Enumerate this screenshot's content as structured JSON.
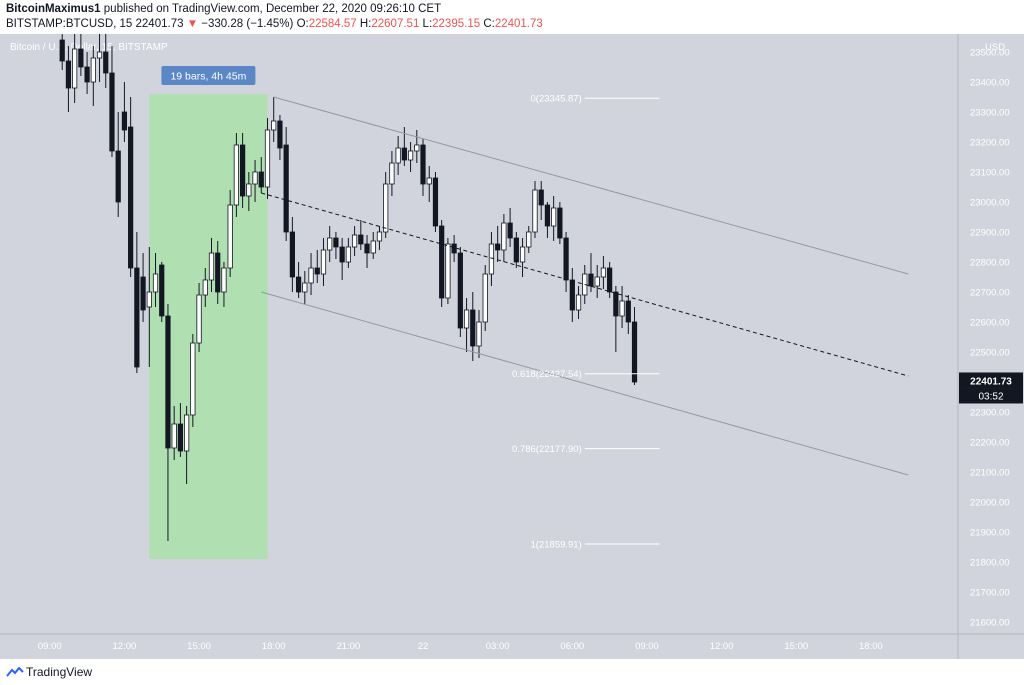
{
  "header": {
    "author": "BitcoinMaximus1",
    "published_text": "published on TradingView.com, December 22, 2020 09:26:10 CET",
    "symbol": "BITSTAMP:BTCUSD, 15",
    "last": "22401.73",
    "change_arrow": "▼",
    "change": "−330.28 (−1.45%)",
    "o_label": "O:",
    "o_value": "22584.57",
    "h_label": "H:",
    "h_value": "22607.51",
    "l_label": "L:",
    "l_value": "22395.15",
    "c_label": "C:",
    "c_value": "22401.73"
  },
  "chart_data": {
    "type": "candlestick",
    "title": "Bitcoin / U.S. Dollar, 15, BITSTAMP",
    "currency": "USD",
    "ylim": [
      21560,
      23560
    ],
    "y_ticks": [
      21600,
      21700,
      21800,
      21900,
      22000,
      22100,
      22200,
      22300,
      22400,
      22500,
      22600,
      22700,
      22800,
      22900,
      23000,
      23100,
      23200,
      23300,
      23400,
      23500
    ],
    "x_ticks": [
      "09:00",
      "12:00",
      "15:00",
      "18:00",
      "21:00",
      "22",
      "03:00",
      "06:00",
      "09:00",
      "12:00",
      "15:00",
      "18:00"
    ],
    "x_tick_time": [
      9,
      12,
      15,
      18,
      21,
      24,
      27,
      30,
      33,
      36,
      39,
      42
    ],
    "candles": [
      {
        "t": 9.5,
        "o": 23540,
        "h": 23600,
        "l": 23440,
        "c": 23470
      },
      {
        "t": 9.75,
        "o": 23470,
        "h": 23520,
        "l": 23300,
        "c": 23380
      },
      {
        "t": 10.0,
        "o": 23380,
        "h": 23560,
        "l": 23330,
        "c": 23510
      },
      {
        "t": 10.25,
        "o": 23510,
        "h": 23560,
        "l": 23420,
        "c": 23450
      },
      {
        "t": 10.5,
        "o": 23450,
        "h": 23500,
        "l": 23360,
        "c": 23400
      },
      {
        "t": 10.75,
        "o": 23400,
        "h": 23520,
        "l": 23320,
        "c": 23480
      },
      {
        "t": 11.0,
        "o": 23480,
        "h": 23560,
        "l": 23400,
        "c": 23500
      },
      {
        "t": 11.25,
        "o": 23500,
        "h": 23560,
        "l": 23380,
        "c": 23430
      },
      {
        "t": 11.5,
        "o": 23430,
        "h": 23520,
        "l": 23150,
        "c": 23170
      },
      {
        "t": 11.75,
        "o": 23170,
        "h": 23300,
        "l": 22950,
        "c": 23000
      },
      {
        "t": 12.0,
        "o": 23300,
        "h": 23400,
        "l": 23200,
        "c": 23240
      },
      {
        "t": 12.25,
        "o": 23250,
        "h": 23350,
        "l": 22750,
        "c": 22780
      },
      {
        "t": 12.5,
        "o": 22780,
        "h": 22900,
        "l": 22430,
        "c": 22450
      },
      {
        "t": 12.75,
        "o": 22750,
        "h": 22830,
        "l": 22600,
        "c": 22640
      },
      {
        "t": 13.0,
        "o": 22650,
        "h": 22850,
        "l": 22450,
        "c": 22700
      },
      {
        "t": 13.25,
        "o": 22700,
        "h": 22830,
        "l": 22650,
        "c": 22760
      },
      {
        "t": 13.5,
        "o": 22790,
        "h": 22800,
        "l": 22600,
        "c": 22620
      },
      {
        "t": 13.75,
        "o": 22620,
        "h": 22660,
        "l": 21870,
        "c": 22180
      },
      {
        "t": 14.0,
        "o": 22180,
        "h": 22320,
        "l": 22140,
        "c": 22260
      },
      {
        "t": 14.25,
        "o": 22260,
        "h": 22330,
        "l": 22150,
        "c": 22170
      },
      {
        "t": 14.5,
        "o": 22170,
        "h": 22320,
        "l": 22060,
        "c": 22290
      },
      {
        "t": 14.75,
        "o": 22290,
        "h": 22560,
        "l": 22250,
        "c": 22530
      },
      {
        "t": 15.0,
        "o": 22530,
        "h": 22730,
        "l": 22500,
        "c": 22690
      },
      {
        "t": 15.25,
        "o": 22690,
        "h": 22780,
        "l": 22650,
        "c": 22740
      },
      {
        "t": 15.5,
        "o": 22740,
        "h": 22880,
        "l": 22700,
        "c": 22830
      },
      {
        "t": 15.75,
        "o": 22830,
        "h": 22870,
        "l": 22660,
        "c": 22700
      },
      {
        "t": 16.0,
        "o": 22700,
        "h": 22800,
        "l": 22650,
        "c": 22780
      },
      {
        "t": 16.25,
        "o": 22780,
        "h": 23040,
        "l": 22750,
        "c": 22990
      },
      {
        "t": 16.5,
        "o": 22990,
        "h": 23230,
        "l": 22950,
        "c": 23190
      },
      {
        "t": 16.75,
        "o": 23190,
        "h": 23230,
        "l": 22980,
        "c": 23020
      },
      {
        "t": 17.0,
        "o": 23020,
        "h": 23100,
        "l": 22970,
        "c": 23060
      },
      {
        "t": 17.25,
        "o": 23060,
        "h": 23140,
        "l": 23000,
        "c": 23100
      },
      {
        "t": 17.5,
        "o": 23100,
        "h": 23150,
        "l": 23030,
        "c": 23050
      },
      {
        "t": 17.75,
        "o": 23050,
        "h": 23280,
        "l": 23010,
        "c": 23240
      },
      {
        "t": 18.0,
        "o": 23240,
        "h": 23350,
        "l": 23200,
        "c": 23270
      },
      {
        "t": 18.25,
        "o": 23270,
        "h": 23290,
        "l": 23140,
        "c": 23180
      },
      {
        "t": 18.5,
        "o": 23190,
        "h": 23250,
        "l": 22870,
        "c": 22900
      },
      {
        "t": 18.75,
        "o": 22900,
        "h": 22950,
        "l": 22700,
        "c": 22750
      },
      {
        "t": 19.0,
        "o": 22750,
        "h": 22800,
        "l": 22680,
        "c": 22700
      },
      {
        "t": 19.25,
        "o": 22700,
        "h": 22770,
        "l": 22660,
        "c": 22730
      },
      {
        "t": 19.5,
        "o": 22730,
        "h": 22830,
        "l": 22690,
        "c": 22780
      },
      {
        "t": 19.75,
        "o": 22780,
        "h": 22840,
        "l": 22730,
        "c": 22760
      },
      {
        "t": 20.0,
        "o": 22760,
        "h": 22880,
        "l": 22720,
        "c": 22840
      },
      {
        "t": 20.25,
        "o": 22840,
        "h": 22920,
        "l": 22800,
        "c": 22880
      },
      {
        "t": 20.5,
        "o": 22880,
        "h": 22900,
        "l": 22810,
        "c": 22850
      },
      {
        "t": 20.75,
        "o": 22850,
        "h": 22880,
        "l": 22740,
        "c": 22800
      },
      {
        "t": 21.0,
        "o": 22800,
        "h": 22880,
        "l": 22780,
        "c": 22850
      },
      {
        "t": 21.25,
        "o": 22850,
        "h": 22920,
        "l": 22820,
        "c": 22890
      },
      {
        "t": 21.5,
        "o": 22890,
        "h": 22940,
        "l": 22840,
        "c": 22860
      },
      {
        "t": 21.75,
        "o": 22860,
        "h": 22890,
        "l": 22780,
        "c": 22830
      },
      {
        "t": 22.0,
        "o": 22830,
        "h": 22900,
        "l": 22810,
        "c": 22870
      },
      {
        "t": 22.25,
        "o": 22870,
        "h": 22920,
        "l": 22840,
        "c": 22900
      },
      {
        "t": 22.5,
        "o": 22900,
        "h": 23100,
        "l": 22880,
        "c": 23060
      },
      {
        "t": 22.75,
        "o": 23060,
        "h": 23170,
        "l": 23020,
        "c": 23130
      },
      {
        "t": 23.0,
        "o": 23130,
        "h": 23220,
        "l": 23090,
        "c": 23180
      },
      {
        "t": 23.25,
        "o": 23180,
        "h": 23250,
        "l": 23120,
        "c": 23140
      },
      {
        "t": 23.5,
        "o": 23140,
        "h": 23200,
        "l": 23100,
        "c": 23170
      },
      {
        "t": 23.75,
        "o": 23170,
        "h": 23240,
        "l": 23130,
        "c": 23190
      },
      {
        "t": 24.0,
        "o": 23190,
        "h": 23210,
        "l": 23020,
        "c": 23060
      },
      {
        "t": 24.25,
        "o": 23060,
        "h": 23120,
        "l": 23000,
        "c": 23080
      },
      {
        "t": 24.5,
        "o": 23080,
        "h": 23100,
        "l": 22900,
        "c": 22920
      },
      {
        "t": 24.75,
        "o": 22920,
        "h": 22940,
        "l": 22650,
        "c": 22680
      },
      {
        "t": 25.0,
        "o": 22680,
        "h": 22880,
        "l": 22660,
        "c": 22860
      },
      {
        "t": 25.25,
        "o": 22860,
        "h": 22890,
        "l": 22800,
        "c": 22830
      },
      {
        "t": 25.5,
        "o": 22830,
        "h": 22850,
        "l": 22550,
        "c": 22580
      },
      {
        "t": 25.75,
        "o": 22580,
        "h": 22680,
        "l": 22500,
        "c": 22640
      },
      {
        "t": 26.0,
        "o": 22640,
        "h": 22700,
        "l": 22470,
        "c": 22520
      },
      {
        "t": 26.25,
        "o": 22520,
        "h": 22640,
        "l": 22480,
        "c": 22600
      },
      {
        "t": 26.5,
        "o": 22600,
        "h": 22790,
        "l": 22570,
        "c": 22760
      },
      {
        "t": 26.75,
        "o": 22760,
        "h": 22900,
        "l": 22720,
        "c": 22860
      },
      {
        "t": 27.0,
        "o": 22860,
        "h": 22920,
        "l": 22800,
        "c": 22840
      },
      {
        "t": 27.25,
        "o": 22840,
        "h": 22960,
        "l": 22800,
        "c": 22930
      },
      {
        "t": 27.5,
        "o": 22930,
        "h": 22980,
        "l": 22850,
        "c": 22880
      },
      {
        "t": 27.75,
        "o": 22880,
        "h": 22900,
        "l": 22780,
        "c": 22800
      },
      {
        "t": 28.0,
        "o": 22800,
        "h": 22880,
        "l": 22750,
        "c": 22850
      },
      {
        "t": 28.25,
        "o": 22850,
        "h": 22920,
        "l": 22830,
        "c": 22900
      },
      {
        "t": 28.5,
        "o": 22900,
        "h": 23070,
        "l": 22880,
        "c": 23040
      },
      {
        "t": 28.75,
        "o": 23040,
        "h": 23070,
        "l": 22940,
        "c": 22990
      },
      {
        "t": 29.0,
        "o": 22990,
        "h": 23000,
        "l": 22880,
        "c": 22920
      },
      {
        "t": 29.25,
        "o": 22920,
        "h": 23020,
        "l": 22870,
        "c": 22980
      },
      {
        "t": 29.5,
        "o": 22980,
        "h": 23000,
        "l": 22860,
        "c": 22880
      },
      {
        "t": 29.75,
        "o": 22880,
        "h": 22900,
        "l": 22700,
        "c": 22740
      },
      {
        "t": 30.0,
        "o": 22740,
        "h": 22780,
        "l": 22600,
        "c": 22640
      },
      {
        "t": 30.25,
        "o": 22640,
        "h": 22720,
        "l": 22610,
        "c": 22690
      },
      {
        "t": 30.5,
        "o": 22690,
        "h": 22790,
        "l": 22660,
        "c": 22760
      },
      {
        "t": 30.75,
        "o": 22760,
        "h": 22830,
        "l": 22700,
        "c": 22720
      },
      {
        "t": 31.0,
        "o": 22720,
        "h": 22790,
        "l": 22680,
        "c": 22750
      },
      {
        "t": 31.25,
        "o": 22750,
        "h": 22820,
        "l": 22710,
        "c": 22780
      },
      {
        "t": 31.5,
        "o": 22780,
        "h": 22800,
        "l": 22680,
        "c": 22700
      },
      {
        "t": 31.75,
        "o": 22700,
        "h": 22720,
        "l": 22500,
        "c": 22620
      },
      {
        "t": 32.0,
        "o": 22620,
        "h": 22720,
        "l": 22580,
        "c": 22670
      },
      {
        "t": 32.25,
        "o": 22670,
        "h": 22690,
        "l": 22560,
        "c": 22600
      },
      {
        "t": 32.5,
        "o": 22600,
        "h": 22650,
        "l": 22390,
        "c": 22400
      }
    ],
    "channel_upper": [
      [
        18.0,
        23350
      ],
      [
        43.5,
        22760
      ]
    ],
    "channel_lower": [
      [
        17.5,
        22700
      ],
      [
        43.5,
        22090
      ]
    ],
    "channel_mid": [
      [
        17.5,
        23030
      ],
      [
        43.5,
        22420
      ]
    ],
    "measure": {
      "label": "19 bars, 4h 45m",
      "t_start": 13.0,
      "t_end": 17.75,
      "p_low": 21810,
      "p_high": 23360
    },
    "fib_levels": [
      {
        "label": "0(23345.87)",
        "value": 23345.87
      },
      {
        "label": "0.618(22427.54)",
        "value": 22427.54
      },
      {
        "label": "0.786(22177.90)",
        "value": 22177.9
      },
      {
        "label": "1(21859.91)",
        "value": 21859.91
      }
    ],
    "fib_t_start": 30.5,
    "fib_t_end": 33.5,
    "price_tag": "22401.73",
    "countdown": "03:52",
    "colors": {
      "background": "#d1d4dc",
      "up": "#ffffff",
      "down": "#131722",
      "measure": "#b0dfb2",
      "measure_label": "#5b87c7"
    }
  },
  "footer": {
    "brand": "TradingView"
  }
}
